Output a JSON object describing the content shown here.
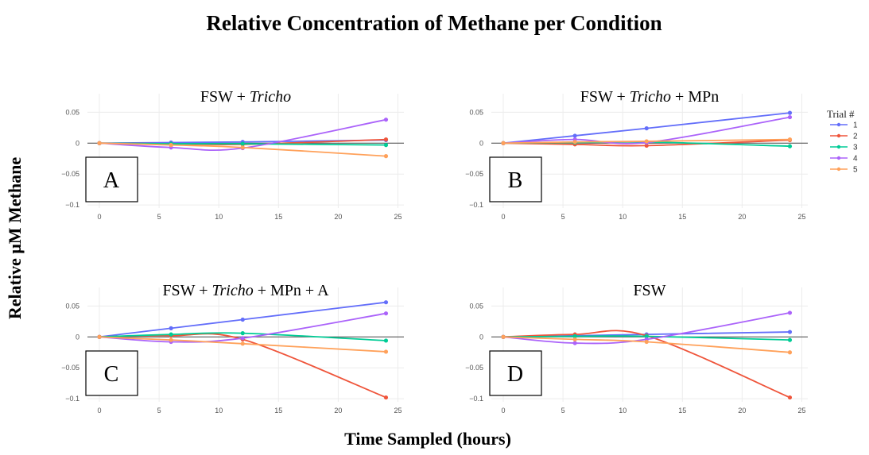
{
  "figure": {
    "title": "Relative Concentration of Methane per Condition",
    "ylabel": "Relative μM Methane",
    "xlabel": "Time Sampled (hours)"
  },
  "legend": {
    "title": "Trial #",
    "placement": "right",
    "entries": [
      {
        "label": "1",
        "color": "#636efa"
      },
      {
        "label": "2",
        "color": "#ef553b"
      },
      {
        "label": "3",
        "color": "#00cc96"
      },
      {
        "label": "4",
        "color": "#ab63fa"
      },
      {
        "label": "5",
        "color": "#ffa15a"
      }
    ]
  },
  "chart_data": [
    {
      "type": "line",
      "panel_label": "A",
      "title_parts": [
        {
          "text": "FSW + ",
          "italic": false
        },
        {
          "text": "Tricho",
          "italic": true
        }
      ],
      "x": [
        0,
        6,
        12,
        24
      ],
      "xlim": [
        -1,
        25.5
      ],
      "ylim": [
        -0.105,
        0.08
      ],
      "xticks": [
        0,
        5,
        10,
        15,
        20,
        25
      ],
      "yticks": [
        0.05,
        0,
        -0.05,
        -0.1
      ],
      "ytick_labels": [
        "0.05",
        "0",
        "−0.05",
        "−0.1"
      ],
      "grid": true,
      "series": [
        {
          "name": "1",
          "values": [
            0,
            0.001,
            0.002,
            0.005
          ]
        },
        {
          "name": "2",
          "values": [
            0,
            -0.001,
            -0.002,
            0.006
          ]
        },
        {
          "name": "3",
          "values": [
            0,
            -0.001,
            -0.001,
            -0.003
          ]
        },
        {
          "name": "4",
          "values": [
            0,
            -0.007,
            -0.008,
            0.038
          ]
        },
        {
          "name": "5",
          "values": [
            0,
            -0.003,
            -0.007,
            -0.021
          ]
        }
      ]
    },
    {
      "type": "line",
      "panel_label": "B",
      "title_parts": [
        {
          "text": "FSW + ",
          "italic": false
        },
        {
          "text": "Tricho",
          "italic": true
        },
        {
          "text": " + MPn",
          "italic": false
        }
      ],
      "x": [
        0,
        6,
        12,
        24
      ],
      "xlim": [
        -1,
        25.5
      ],
      "ylim": [
        -0.105,
        0.08
      ],
      "xticks": [
        0,
        5,
        10,
        15,
        20,
        25
      ],
      "yticks": [
        0.05,
        0,
        -0.05,
        -0.1
      ],
      "ytick_labels": [
        "0.05",
        "0",
        "−0.05",
        "−0.1"
      ],
      "grid": true,
      "series": [
        {
          "name": "1",
          "values": [
            0,
            0.012,
            0.024,
            0.049
          ]
        },
        {
          "name": "2",
          "values": [
            0,
            -0.002,
            -0.004,
            0.005
          ]
        },
        {
          "name": "3",
          "values": [
            0,
            0.001,
            0.002,
            -0.005
          ]
        },
        {
          "name": "4",
          "values": [
            0,
            0.006,
            0.001,
            0.042
          ]
        },
        {
          "name": "5",
          "values": [
            0,
            0.002,
            0.003,
            0.006
          ]
        }
      ]
    },
    {
      "type": "line",
      "panel_label": "C",
      "title_parts": [
        {
          "text": "FSW + ",
          "italic": false
        },
        {
          "text": "Tricho",
          "italic": true
        },
        {
          "text": " + MPn + A",
          "italic": false
        }
      ],
      "x": [
        0,
        6,
        12,
        24
      ],
      "xlim": [
        -1,
        25.5
      ],
      "ylim": [
        -0.105,
        0.08
      ],
      "xticks": [
        0,
        5,
        10,
        15,
        20,
        25
      ],
      "yticks": [
        0.05,
        0,
        -0.05,
        -0.1
      ],
      "ytick_labels": [
        "0.05",
        "0",
        "−0.05",
        "−0.1"
      ],
      "grid": true,
      "series": [
        {
          "name": "1",
          "values": [
            0,
            0.014,
            0.028,
            0.056
          ]
        },
        {
          "name": "2",
          "values": [
            0,
            0.002,
            -0.004,
            -0.098
          ]
        },
        {
          "name": "3",
          "values": [
            0,
            0.004,
            0.006,
            -0.006
          ]
        },
        {
          "name": "4",
          "values": [
            0,
            -0.008,
            -0.002,
            0.038
          ]
        },
        {
          "name": "5",
          "values": [
            0,
            -0.005,
            -0.011,
            -0.024
          ]
        }
      ]
    },
    {
      "type": "line",
      "panel_label": "D",
      "title_parts": [
        {
          "text": "FSW",
          "italic": false
        }
      ],
      "x": [
        0,
        6,
        12,
        24
      ],
      "xlim": [
        -1,
        25.5
      ],
      "ylim": [
        -0.105,
        0.08
      ],
      "xticks": [
        0,
        5,
        10,
        15,
        20,
        25
      ],
      "yticks": [
        0.05,
        0,
        -0.05,
        -0.1
      ],
      "ytick_labels": [
        "0.05",
        "0",
        "−0.05",
        "−0.1"
      ],
      "grid": true,
      "series": [
        {
          "name": "1",
          "values": [
            0,
            0.002,
            0.004,
            0.008
          ]
        },
        {
          "name": "2",
          "values": [
            0,
            0.004,
            0.002,
            -0.098
          ]
        },
        {
          "name": "3",
          "values": [
            0,
            0.001,
            0.001,
            -0.005
          ]
        },
        {
          "name": "4",
          "values": [
            0,
            -0.01,
            -0.004,
            0.039
          ]
        },
        {
          "name": "5",
          "values": [
            0,
            -0.004,
            -0.008,
            -0.025
          ]
        }
      ]
    }
  ]
}
